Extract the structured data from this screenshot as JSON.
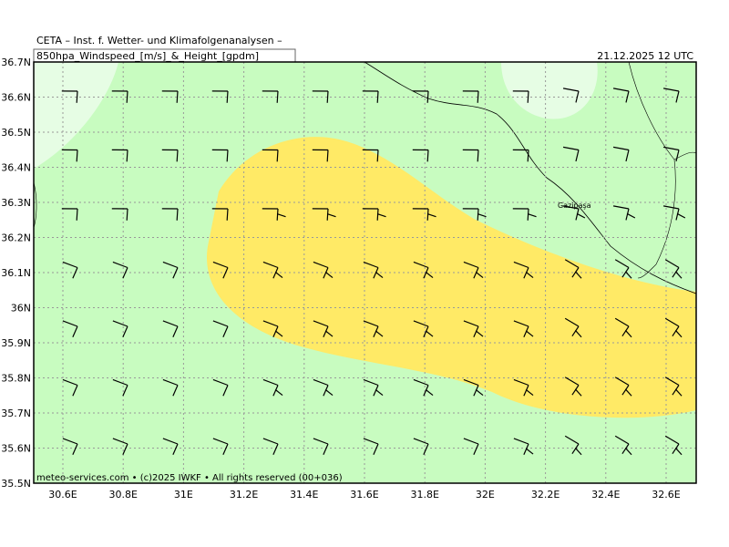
{
  "header": {
    "title": "CETA – Inst. f. Wetter- und Klimafolgenanalysen –",
    "product": "850hpa_Windspeed_[m/s]_&_Height_[gpdm]",
    "valid_time": "21.12.2025 12 UTC"
  },
  "map": {
    "lat_labels": [
      "36.7N",
      "36.6N",
      "36.5N",
      "36.4N",
      "36.3N",
      "36.2N",
      "36.1N",
      "36N",
      "35.9N",
      "35.8N",
      "35.7N",
      "35.6N",
      "35.5N"
    ],
    "lon_labels": [
      "30.6E",
      "30.8E",
      "31E",
      "31.2E",
      "31.4E",
      "31.6E",
      "31.8E",
      "32E",
      "32.2E",
      "32.4E",
      "32.6E"
    ],
    "places": [
      "Gazipaşa"
    ]
  },
  "footer": "meteo-services.com • (c)2025 IWKF • All rights reserved (00+036)"
}
